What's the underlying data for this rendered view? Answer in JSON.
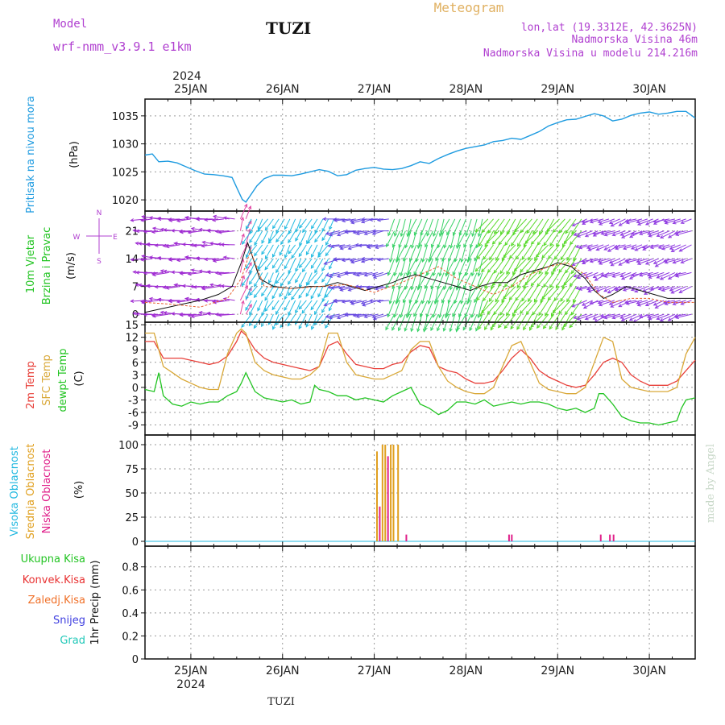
{
  "header": {
    "model_label": "Model",
    "model_name": "wrf-nmm_v3.9.1 e1km",
    "station": "TUZI",
    "chart_type_title": "Meteogram",
    "lonlat": "lon,lat (19.3312E, 42.3625N)",
    "elevation": "Nadmorska Visina 46m",
    "model_elevation": "Nadmorska Visina u modelu 214.216m",
    "footer_station": "TUZI",
    "credit": "made by Angel"
  },
  "colors": {
    "pressure": "#1e9be0",
    "temp2m": "#e8403a",
    "sfc": "#d9a838",
    "dewpt": "#22c422",
    "model_label": "#b040d0",
    "meteogram": "#e0b060",
    "info": "#b040d0",
    "vis": "#22b8e0",
    "mid": "#e0a020",
    "low": "#e0208a",
    "ukupna": "#22c422",
    "konvek": "#e83030",
    "zaledj": "#f07028",
    "snijeg": "#4040e0",
    "grad": "#20c8b8"
  },
  "time_axis": {
    "year": "2024",
    "day_labels": [
      "25JAN",
      "26JAN",
      "27JAN",
      "28JAN",
      "29JAN",
      "30JAN"
    ],
    "start_day": 24.5,
    "end_day": 30.5
  },
  "chart_data": [
    {
      "id": "pressure",
      "type": "line",
      "ylabel_name": "Pritisak na nivou mora",
      "ylabel_unit": "(hPa)",
      "yticks": [
        1020,
        1025,
        1030,
        1035
      ],
      "ylim": [
        1018,
        1038
      ],
      "grid": true,
      "series": [
        {
          "color_key": "pressure",
          "x": [
            24.5,
            24.58,
            24.65,
            24.75,
            24.85,
            24.95,
            25.05,
            25.15,
            25.25,
            25.35,
            25.45,
            25.52,
            25.56,
            25.6,
            25.65,
            25.72,
            25.8,
            25.9,
            26.0,
            26.1,
            26.2,
            26.3,
            26.4,
            26.5,
            26.6,
            26.7,
            26.8,
            26.9,
            27.0,
            27.1,
            27.2,
            27.3,
            27.4,
            27.5,
            27.6,
            27.7,
            27.8,
            27.9,
            28.0,
            28.1,
            28.2,
            28.3,
            28.4,
            28.5,
            28.6,
            28.7,
            28.8,
            28.9,
            29.0,
            29.1,
            29.2,
            29.3,
            29.4,
            29.5,
            29.6,
            29.7,
            29.8,
            29.9,
            30.0,
            30.1,
            30.2,
            30.3,
            30.4,
            30.5
          ],
          "y": [
            1028,
            1028.2,
            1026.8,
            1026.9,
            1026.6,
            1025.9,
            1025.2,
            1024.6,
            1024.5,
            1024.3,
            1024,
            1021.5,
            1020.1,
            1019.6,
            1020.8,
            1022.5,
            1023.8,
            1024.4,
            1024.4,
            1024.3,
            1024.6,
            1025,
            1025.4,
            1025.1,
            1024.3,
            1024.5,
            1025.3,
            1025.6,
            1025.8,
            1025.5,
            1025.4,
            1025.6,
            1026.1,
            1026.8,
            1026.5,
            1027.4,
            1028.1,
            1028.7,
            1029.2,
            1029.5,
            1029.8,
            1030.4,
            1030.6,
            1031,
            1030.8,
            1031.5,
            1032.2,
            1033.2,
            1033.8,
            1034.3,
            1034.4,
            1034.9,
            1035.4,
            1035,
            1034.1,
            1034.4,
            1035.1,
            1035.5,
            1035.7,
            1035.3,
            1035.5,
            1035.8,
            1035.8,
            1034.6
          ]
        }
      ]
    },
    {
      "id": "wind",
      "type": "line",
      "ylabel_name": "10m Vjetar",
      "ylabel_name2": "Brzina i Pravac",
      "ylabel_unit": "(m/s)",
      "compass": [
        "N",
        "E",
        "W",
        "S"
      ],
      "yticks": [
        0,
        7,
        14,
        21
      ],
      "ylim": [
        -2,
        26
      ],
      "grid": true,
      "speed": {
        "x": [
          24.5,
          24.7,
          24.9,
          25.1,
          25.3,
          25.45,
          25.55,
          25.62,
          25.68,
          25.75,
          25.9,
          26.1,
          26.3,
          26.45,
          26.6,
          26.75,
          26.9,
          27.05,
          27.2,
          27.3,
          27.45,
          27.6,
          27.75,
          27.9,
          28.05,
          28.15,
          28.3,
          28.45,
          28.6,
          28.75,
          28.9,
          29.0,
          29.15,
          29.3,
          29.4,
          29.5,
          29.6,
          29.75,
          29.9,
          30.05,
          30.2,
          30.35,
          30.5
        ],
        "y": [
          0.5,
          1.5,
          2.5,
          3.5,
          5,
          7,
          13,
          18,
          14,
          9,
          7,
          6.5,
          7,
          7,
          8,
          7,
          6,
          7,
          8,
          9,
          10,
          9,
          8,
          7,
          6,
          7,
          8,
          8,
          10,
          11,
          12,
          13,
          12,
          9,
          6,
          4,
          5,
          7,
          6,
          5,
          4,
          4,
          4
        ]
      },
      "gust": {
        "x": [
          24.5,
          24.8,
          25.1,
          25.4,
          25.55,
          25.65,
          25.8,
          26.1,
          26.4,
          26.7,
          27.0,
          27.3,
          27.5,
          27.7,
          27.9,
          28.1,
          28.3,
          28.5,
          28.7,
          28.9,
          29.1,
          29.3,
          29.45,
          29.6,
          29.8,
          30.0,
          30.2,
          30.5
        ],
        "y": [
          3,
          2.5,
          1.8,
          4,
          9,
          16,
          7,
          6.5,
          7,
          7.5,
          5.5,
          8,
          10,
          12,
          9,
          7,
          5,
          7,
          10,
          12,
          13,
          10,
          5,
          3,
          4,
          4,
          3,
          3
        ]
      }
    },
    {
      "id": "temperature",
      "type": "line",
      "ylabel_t2m": "2m Temp",
      "ylabel_sfc": "SFC Temp",
      "ylabel_dew": "dewpt Temp",
      "ylabel_unit": "(C)",
      "yticks": [
        -9,
        -6,
        -3,
        0,
        3,
        6,
        9,
        12,
        15
      ],
      "ylim": [
        -11.4,
        15.6
      ],
      "grid": true,
      "series": [
        {
          "color_key": "temp2m",
          "x": [
            24.5,
            24.6,
            24.7,
            24.8,
            24.9,
            25.0,
            25.1,
            25.2,
            25.3,
            25.4,
            25.5,
            25.55,
            25.6,
            25.7,
            25.8,
            25.9,
            26.0,
            26.1,
            26.2,
            26.3,
            26.4,
            26.5,
            26.6,
            26.7,
            26.8,
            26.9,
            27.0,
            27.1,
            27.2,
            27.3,
            27.4,
            27.5,
            27.6,
            27.7,
            27.8,
            27.9,
            28.0,
            28.1,
            28.2,
            28.3,
            28.4,
            28.5,
            28.6,
            28.7,
            28.8,
            28.9,
            29.0,
            29.1,
            29.2,
            29.3,
            29.4,
            29.5,
            29.6,
            29.7,
            29.8,
            29.9,
            30.0,
            30.1,
            30.2,
            30.3,
            30.4,
            30.5
          ],
          "y": [
            11,
            11,
            7,
            7,
            7,
            6.5,
            6,
            5.5,
            6,
            7.5,
            11,
            13.5,
            12.5,
            9,
            7,
            6,
            5.5,
            5,
            4.5,
            4,
            5,
            10,
            11,
            8,
            5.5,
            5,
            4.5,
            4.5,
            5.5,
            6,
            8.5,
            10,
            9.5,
            5,
            4,
            3.5,
            2,
            1,
            1,
            1.5,
            4,
            7,
            9,
            7,
            4,
            2.5,
            1.5,
            0.5,
            0,
            0.5,
            3,
            6,
            7,
            6,
            3,
            1.5,
            0.5,
            0.5,
            0.5,
            1.5,
            4,
            6.5
          ]
        },
        {
          "color_key": "sfc",
          "x": [
            24.5,
            24.6,
            24.7,
            24.8,
            24.9,
            25.0,
            25.1,
            25.2,
            25.3,
            25.4,
            25.5,
            25.55,
            25.6,
            25.7,
            25.8,
            25.9,
            26.0,
            26.1,
            26.2,
            26.3,
            26.4,
            26.5,
            26.6,
            26.7,
            26.8,
            26.9,
            27.0,
            27.1,
            27.2,
            27.3,
            27.4,
            27.5,
            27.6,
            27.7,
            27.8,
            27.9,
            28.0,
            28.1,
            28.2,
            28.3,
            28.4,
            28.5,
            28.6,
            28.7,
            28.8,
            28.9,
            29.0,
            29.1,
            29.2,
            29.3,
            29.4,
            29.5,
            29.6,
            29.7,
            29.8,
            29.9,
            30.0,
            30.1,
            30.2,
            30.3,
            30.4,
            30.5
          ],
          "y": [
            13,
            13,
            5,
            3.5,
            2,
            1,
            0,
            -0.5,
            -0.5,
            8,
            13,
            14,
            13,
            6,
            4,
            3,
            2.5,
            2,
            2,
            3,
            5,
            13,
            13,
            6,
            3,
            2.5,
            2,
            2,
            3,
            4,
            9,
            11,
            11,
            5,
            1.5,
            0,
            -1,
            -1.5,
            -1.5,
            0,
            5,
            10,
            11,
            6,
            1,
            -0.5,
            -1,
            -1.5,
            -1.5,
            0,
            6,
            12,
            11,
            2,
            0,
            -0.5,
            -1,
            -1,
            -1,
            0,
            8,
            12
          ]
        },
        {
          "color_key": "dewpt",
          "x": [
            24.5,
            24.6,
            24.65,
            24.7,
            24.8,
            24.9,
            25.0,
            25.1,
            25.2,
            25.3,
            25.4,
            25.5,
            25.55,
            25.6,
            25.7,
            25.8,
            25.9,
            26.0,
            26.1,
            26.2,
            26.3,
            26.35,
            26.4,
            26.5,
            26.6,
            26.7,
            26.8,
            26.9,
            27.0,
            27.1,
            27.2,
            27.3,
            27.4,
            27.5,
            27.6,
            27.7,
            27.8,
            27.9,
            28.0,
            28.1,
            28.2,
            28.3,
            28.4,
            28.5,
            28.6,
            28.7,
            28.8,
            28.9,
            29.0,
            29.1,
            29.2,
            29.3,
            29.4,
            29.45,
            29.5,
            29.6,
            29.7,
            29.8,
            29.9,
            30.0,
            30.1,
            30.2,
            30.3,
            30.35,
            30.4,
            30.5
          ],
          "y": [
            -0.5,
            -1,
            3.5,
            -2,
            -4,
            -4.5,
            -3.5,
            -4,
            -3.5,
            -3.5,
            -2,
            -1,
            1,
            3.5,
            -1,
            -2.5,
            -3,
            -3.5,
            -3,
            -4,
            -3.5,
            0.5,
            -0.5,
            -1,
            -2,
            -2,
            -3,
            -2.5,
            -3,
            -3.5,
            -2,
            -1,
            0,
            -4,
            -5,
            -6.5,
            -5.5,
            -3.5,
            -3.5,
            -4,
            -3,
            -4.5,
            -4,
            -3.5,
            -4,
            -3.5,
            -3.5,
            -4,
            -5,
            -5.5,
            -5,
            -6,
            -5,
            -1.5,
            -1.5,
            -4,
            -7,
            -8,
            -8.5,
            -8.5,
            -9,
            -8.5,
            -8,
            -5,
            -3,
            -2.5
          ]
        }
      ]
    },
    {
      "id": "clouds",
      "type": "bar",
      "ylabel_high": "Visoka Oblacnost",
      "ylabel_mid": "Srednja Oblacnost",
      "ylabel_low": "Niska Oblacnost",
      "ylabel_unit": "(%)",
      "yticks": [
        0,
        25,
        50,
        75,
        100
      ],
      "ylim": [
        -5,
        110
      ],
      "grid": true,
      "bars": [
        {
          "x": 27.03,
          "value": 93,
          "color_key": "mid"
        },
        {
          "x": 27.06,
          "value": 36,
          "color_key": "low"
        },
        {
          "x": 27.09,
          "value": 100,
          "color_key": "mid"
        },
        {
          "x": 27.12,
          "value": 100,
          "color_key": "mid"
        },
        {
          "x": 27.15,
          "value": 88,
          "color_key": "low"
        },
        {
          "x": 27.18,
          "value": 100,
          "color_key": "mid"
        },
        {
          "x": 27.21,
          "value": 100,
          "color_key": "mid"
        },
        {
          "x": 27.26,
          "value": 100,
          "color_key": "mid"
        },
        {
          "x": 27.35,
          "value": 7,
          "color_key": "low"
        },
        {
          "x": 28.47,
          "value": 7,
          "color_key": "low"
        },
        {
          "x": 28.5,
          "value": 7,
          "color_key": "low"
        },
        {
          "x": 29.47,
          "value": 7,
          "color_key": "low"
        },
        {
          "x": 29.57,
          "value": 7,
          "color_key": "low"
        },
        {
          "x": 29.61,
          "value": 7,
          "color_key": "low"
        }
      ]
    },
    {
      "id": "precip",
      "type": "bar",
      "legend_ukupna": "Ukupna Kisa",
      "legend_konvek": "Konvek.Kisa",
      "legend_zaledj": "Zaledj.Kisa",
      "legend_snijeg": "Snijeg",
      "legend_grad": "Grad",
      "ylabel_unit": "1hr Precip (mm)",
      "yticks": [
        0,
        0.2,
        0.4,
        0.6,
        0.8
      ],
      "ylim": [
        0,
        0.98
      ],
      "grid": true,
      "bars": []
    }
  ]
}
